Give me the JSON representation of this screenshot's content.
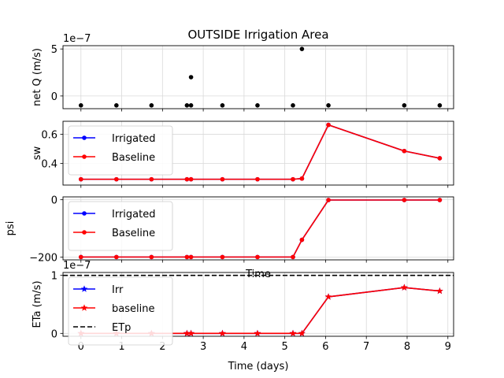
{
  "figure": {
    "title": "OUTSIDE Irrigation Area",
    "colors": {
      "irrigated": "#0000ff",
      "baseline": "#ff0000",
      "etp": "#000000",
      "points": "#000000",
      "grid": "#d9d9d9"
    }
  },
  "chart_data": [
    {
      "type": "scatter",
      "ylabel": "net Q (m/s)",
      "offset_text": "1e−7",
      "xlim": [
        -0.44,
        9.14
      ],
      "ylim": [
        -1.35,
        5.35
      ],
      "yticks": [
        0,
        5
      ],
      "ytick_labels": [
        "0",
        "5"
      ],
      "grid": true,
      "series": [
        {
          "x": [
            0,
            0.87,
            1.73,
            2.6,
            2.7,
            3.47,
            4.33,
            5.2,
            5.42,
            6.07,
            7.93,
            8.8
          ],
          "y": [
            -1,
            -1,
            -1,
            -1,
            2,
            -1,
            -1,
            -1,
            5,
            -1,
            -1,
            -1
          ]
        },
        {
          "x": [
            2.7
          ],
          "y": [
            -1
          ]
        }
      ]
    },
    {
      "type": "line",
      "ylabel": "sw",
      "xlim": [
        -0.44,
        9.14
      ],
      "ylim": [
        0.25,
        0.69
      ],
      "yticks": [
        0.4,
        0.6
      ],
      "ytick_labels": [
        "0.4",
        "0.6"
      ],
      "grid": true,
      "legend_position": "upper-left",
      "series": [
        {
          "name": "Irrigated",
          "marker": "dot",
          "x": [
            0,
            0.87,
            1.73,
            2.6,
            2.7,
            3.47,
            4.33,
            5.2,
            5.42,
            6.07,
            7.93,
            8.8
          ],
          "y": [
            0.29,
            0.29,
            0.29,
            0.29,
            0.29,
            0.29,
            0.29,
            0.29,
            0.295,
            0.665,
            0.485,
            0.435
          ]
        },
        {
          "name": "Baseline",
          "marker": "dot",
          "x": [
            0,
            0.87,
            1.73,
            2.6,
            2.7,
            3.47,
            4.33,
            5.2,
            5.42,
            6.07,
            7.93,
            8.8
          ],
          "y": [
            0.29,
            0.29,
            0.29,
            0.29,
            0.29,
            0.29,
            0.29,
            0.29,
            0.295,
            0.665,
            0.485,
            0.435
          ]
        }
      ]
    },
    {
      "type": "line",
      "ylabel": "psi",
      "xlim": [
        -0.44,
        9.14
      ],
      "ylim": [
        -210,
        10
      ],
      "yticks": [
        -200,
        0
      ],
      "ytick_labels": [
        "−200",
        "0"
      ],
      "grid": true,
      "legend_position": "upper-left",
      "series": [
        {
          "name": "Irrigated",
          "marker": "dot",
          "x": [
            0,
            0.87,
            1.73,
            2.6,
            2.7,
            3.47,
            4.33,
            5.2,
            5.42,
            6.07,
            7.93,
            8.8
          ],
          "y": [
            -200,
            -200,
            -200,
            -200,
            -200,
            -200,
            -200,
            -200,
            -140,
            -1,
            -1,
            -1
          ]
        },
        {
          "name": "Baseline",
          "marker": "dot",
          "x": [
            0,
            0.87,
            1.73,
            2.6,
            2.7,
            3.47,
            4.33,
            5.2,
            5.42,
            6.07,
            7.93,
            8.8
          ],
          "y": [
            -200,
            -200,
            -200,
            -200,
            -200,
            -200,
            -200,
            -200,
            -140,
            -1,
            -1,
            -1
          ]
        }
      ],
      "xlabel_overlapped": "Time"
    },
    {
      "type": "line",
      "ylabel": "ETa (m/s)",
      "xlabel": "Time (days)",
      "offset_text": "1e−7",
      "xlim": [
        -0.44,
        9.14
      ],
      "ylim": [
        -0.05,
        1.05
      ],
      "yticks": [
        0,
        1
      ],
      "ytick_labels": [
        "0",
        "1"
      ],
      "xticks": [
        0,
        1,
        2,
        3,
        4,
        5,
        6,
        7,
        8,
        9
      ],
      "xtick_labels": [
        "0",
        "1",
        "2",
        "3",
        "4",
        "5",
        "6",
        "7",
        "8",
        "9"
      ],
      "grid": true,
      "legend_position": "upper-left",
      "series": [
        {
          "name": "Irr",
          "marker": "star",
          "x": [
            0,
            0.87,
            1.73,
            2.6,
            2.7,
            3.47,
            4.33,
            5.2,
            5.42,
            6.07,
            7.93,
            8.8
          ],
          "y": [
            0,
            0,
            0,
            0,
            0,
            0,
            0,
            0,
            0,
            0.63,
            0.79,
            0.73
          ]
        },
        {
          "name": "baseline",
          "marker": "star",
          "x": [
            0,
            0.87,
            1.73,
            2.6,
            2.7,
            3.47,
            4.33,
            5.2,
            5.42,
            6.07,
            7.93,
            8.8
          ],
          "y": [
            0,
            0,
            0,
            0,
            0,
            0,
            0,
            0,
            0,
            0.63,
            0.79,
            0.73
          ]
        },
        {
          "name": "ETp",
          "style": "dashed",
          "x": [
            -0.44,
            9.14
          ],
          "y": [
            1,
            1
          ]
        }
      ]
    }
  ]
}
